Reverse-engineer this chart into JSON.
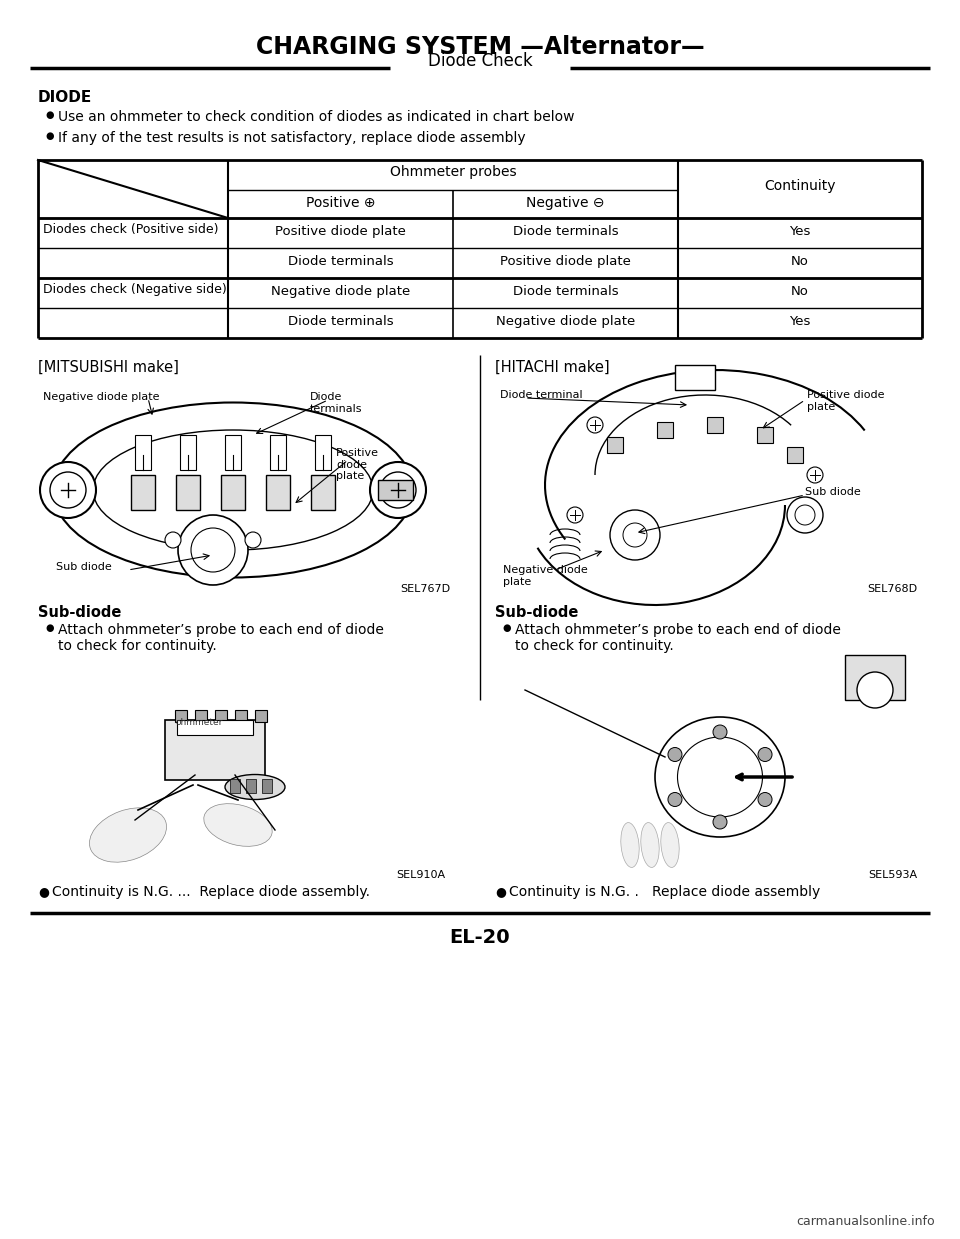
{
  "title": "CHARGING SYSTEM —Alternator—",
  "section_title": "Diode Check",
  "bg_color": "#ffffff",
  "section_label": "DIODE",
  "bullets": [
    "Use an ohmmeter to check condition of diodes as indicated in chart below",
    "If any of the test results is not satisfactory, replace diode assembly"
  ],
  "table_rows": [
    [
      "Diodes check (Positive side)",
      "Positive diode plate",
      "Diode terminals",
      "Yes"
    ],
    [
      "",
      "Diode terminals",
      "Positive diode plate",
      "No"
    ],
    [
      "Diodes check (Negative side)",
      "Negative diode plate",
      "Diode terminals",
      "No"
    ],
    [
      "",
      "Diode terminals",
      "Negative diode plate",
      "Yes"
    ]
  ],
  "left_section_title": "[MITSUBISHI make]",
  "right_section_title": "[HITACHI make]",
  "left_ref": "SEL767D",
  "right_ref": "SEL768D",
  "left_sub_diode_title": "Sub-diode",
  "left_sub_diode_bullet": "Attach ohmmeter’s probe to each end of diode\nto check for continuity.",
  "right_sub_diode_title": "Sub-diode",
  "right_sub_diode_bullet": "Attach ohmmeter’s probe to each end of diode\nto check for continuity.",
  "left_image_ref": "SEL910A",
  "right_image_ref": "SEL593A",
  "left_final_bullet": "Continuity is N.G. ...  Replace diode assembly.",
  "right_final_bullet": "Continuity is N.G. .   Replace diode assembly",
  "page_number": "EL-20",
  "footer_url": "carmanualsonline.info"
}
